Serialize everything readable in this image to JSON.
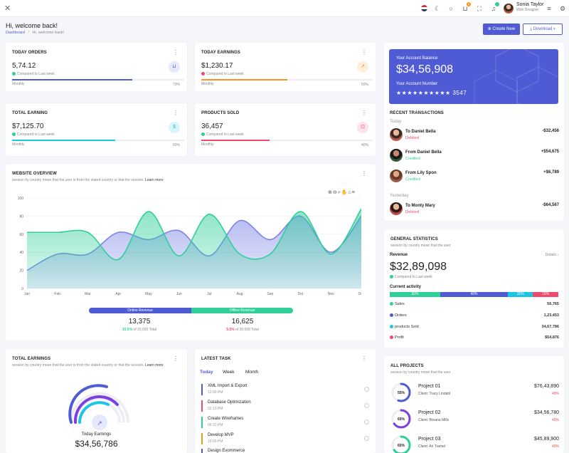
{
  "topbar": {
    "user_name": "Sonia Taylor",
    "user_role": "Web Designer",
    "cart_badge": "3",
    "icons": [
      "flag-us-icon",
      "moon-icon",
      "search-icon",
      "cart-icon",
      "fullscreen-icon",
      "bell-icon",
      "menu-icon",
      "gear-icon"
    ]
  },
  "header": {
    "title": "Hi, welcome back!",
    "breadcrumb_root": "Dashboard",
    "breadcrumb_sep": "/",
    "breadcrumb_current": "Hi, welcome back!",
    "create_button": "Create New",
    "download_button": "Download"
  },
  "stats": [
    {
      "title": "TODAY ORDERS",
      "value": "5,74.12",
      "compare": "Compared to Last week",
      "trend": "up",
      "footer": "Monthly",
      "percent_label": "70%",
      "progress": 70,
      "color": "#4f5bd5",
      "icon": "cart-icon"
    },
    {
      "title": "TODAY EARNINGS",
      "value": "$1,230.17",
      "compare": "Compared to Last week",
      "trend": "down",
      "footer": "Monthly",
      "percent_label": "50%",
      "progress": 50,
      "color": "#f7941d",
      "icon": "chart-icon"
    },
    {
      "title": "TOTAL EARNING",
      "value": "$7,125.70",
      "compare": "Compared to Last week",
      "trend": "up",
      "footer": "Monthly",
      "percent_label": "60%",
      "progress": 60,
      "color": "#1cc6e3",
      "icon": "dollar-icon"
    },
    {
      "title": "PRODUCTS SOLD",
      "value": "36,457",
      "compare": "Compared to Last week",
      "trend": "up",
      "footer": "Monthly",
      "percent_label": "40%",
      "progress": 40,
      "color": "#ef4a6d",
      "icon": "bag-icon"
    }
  ],
  "overview": {
    "title": "WEBSITE OVERVIEW",
    "subtitle": "session by country mean that the user is from the stated country or that the session.",
    "learn_more": "Learn more",
    "online_label": "Online Revenue",
    "offline_label": "Offline Revenue",
    "online_value": "13,375",
    "online_pct": "10.5%",
    "online_total": "of 20,000 Total",
    "offline_value": "16,625",
    "offline_pct": "5.5%",
    "offline_total": "of 20,000 Total"
  },
  "chart_data": {
    "type": "area",
    "categories": [
      "Jan",
      "Feb",
      "Mar",
      "Apr",
      "May",
      "Jun",
      "Jul",
      "Aug",
      "Sep",
      "Oct",
      "Nov",
      "Dec"
    ],
    "series": [
      {
        "name": "",
        "color": "#7b83e6",
        "values": [
          20,
          38,
          38,
          62,
          54,
          64,
          36,
          75,
          54,
          80,
          40,
          80
        ]
      },
      {
        "name": "",
        "color": "#2fcf9a",
        "values": [
          62,
          62,
          62,
          32,
          85,
          36,
          82,
          38,
          38,
          85,
          38,
          88
        ]
      }
    ],
    "ylim": [
      0,
      100
    ],
    "yticks": [
      0,
      20,
      40,
      60,
      80,
      100
    ],
    "grid": true,
    "legend": "none"
  },
  "transactions": {
    "title": "RECENT TRANSACTIONS",
    "today_label": "Today",
    "yesterday_label": "Yesterday",
    "items": [
      {
        "name": "To Daniel Bella",
        "status": "Debited",
        "amount": "-$32,456"
      },
      {
        "name": "From Daniel Bella",
        "status": "Credited",
        "amount": "+$54,675"
      },
      {
        "name": "From Lily Spon",
        "status": "Credited",
        "amount": "+$6,789"
      },
      {
        "name": "To Monty Mary",
        "status": "Debited",
        "amount": "-$64,567"
      }
    ]
  },
  "balance": {
    "label": "Your Account Balance",
    "value": "$34,56,908",
    "number_label": "Your Account Number",
    "number": "★★★★★★★★★★ 3547"
  },
  "general": {
    "title": "GENERAL STATISTICS",
    "subtitle": "session by country mean that the user",
    "revenue_label": "Revenue",
    "details": "Details",
    "value": "$32,89,098",
    "compare": "Compared to Last week",
    "activity_label": "Current activity",
    "activity": [
      {
        "label": "30%",
        "value": 30,
        "color": "#2fcf9a"
      },
      {
        "label": "40%",
        "value": 40,
        "color": "#4f5bd5"
      },
      {
        "label": "15%",
        "value": 15,
        "color": "#1cc6e3"
      },
      {
        "label": "15%",
        "value": 15,
        "color": "#ef4a6d"
      }
    ],
    "rows": [
      {
        "label": "Sales",
        "value": "56,765",
        "color": "#2fcf9a"
      },
      {
        "label": "Orders",
        "value": "1,23,453",
        "color": "#4f5bd5"
      },
      {
        "label": "products Sold",
        "value": "34,67,786",
        "color": "#1cc6e3"
      },
      {
        "label": "Profit",
        "value": "$54,876",
        "color": "#ef4a6d"
      }
    ]
  },
  "total_earnings": {
    "title": "TOTAL EARNINGS",
    "subtitle": "session by country mean that the user is from the stated country or that the session.",
    "learn_more": "Learn more",
    "label": "Today Earnings",
    "value": "$34,56,786"
  },
  "tasks": {
    "title": "LATEST TASK",
    "tabs": [
      "Today",
      "Week",
      "Month"
    ],
    "items": [
      {
        "name": "XML Import & Export",
        "time": "12:00 PM",
        "color": "#4f5bd5"
      },
      {
        "name": "Database Optimization",
        "time": "02:13 PM",
        "color": "#ef4a6d"
      },
      {
        "name": "Create Wireframes",
        "time": "06:20 PM",
        "color": "#2fcf9a"
      },
      {
        "name": "Develop MVP",
        "time": "10:00 PM",
        "color": "#f7941d"
      },
      {
        "name": "Design Evommerce",
        "time": "",
        "color": "#4f5bd5"
      }
    ]
  },
  "projects": {
    "title": "ALL PROJECTS",
    "subtitle": "session by country mean that the user",
    "items": [
      {
        "name": "Project 01",
        "client": "Client: Tracy Lindahl",
        "amount": "$76,43,890",
        "pct": "40%",
        "ring": "55%",
        "ring_value": 55,
        "color": "#4f5bd5"
      },
      {
        "name": "Project 02",
        "client": "Client: Breana Mills",
        "amount": "$34,56,780",
        "pct": "40%",
        "ring": "65%",
        "ring_value": 65,
        "color": "#7b3fe4"
      },
      {
        "name": "Project 03",
        "client": "Client: Ari Tramel",
        "amount": "$45,89,900",
        "pct": "40%",
        "ring": "65%",
        "ring_value": 65,
        "color": "#2fcf9a"
      }
    ]
  }
}
